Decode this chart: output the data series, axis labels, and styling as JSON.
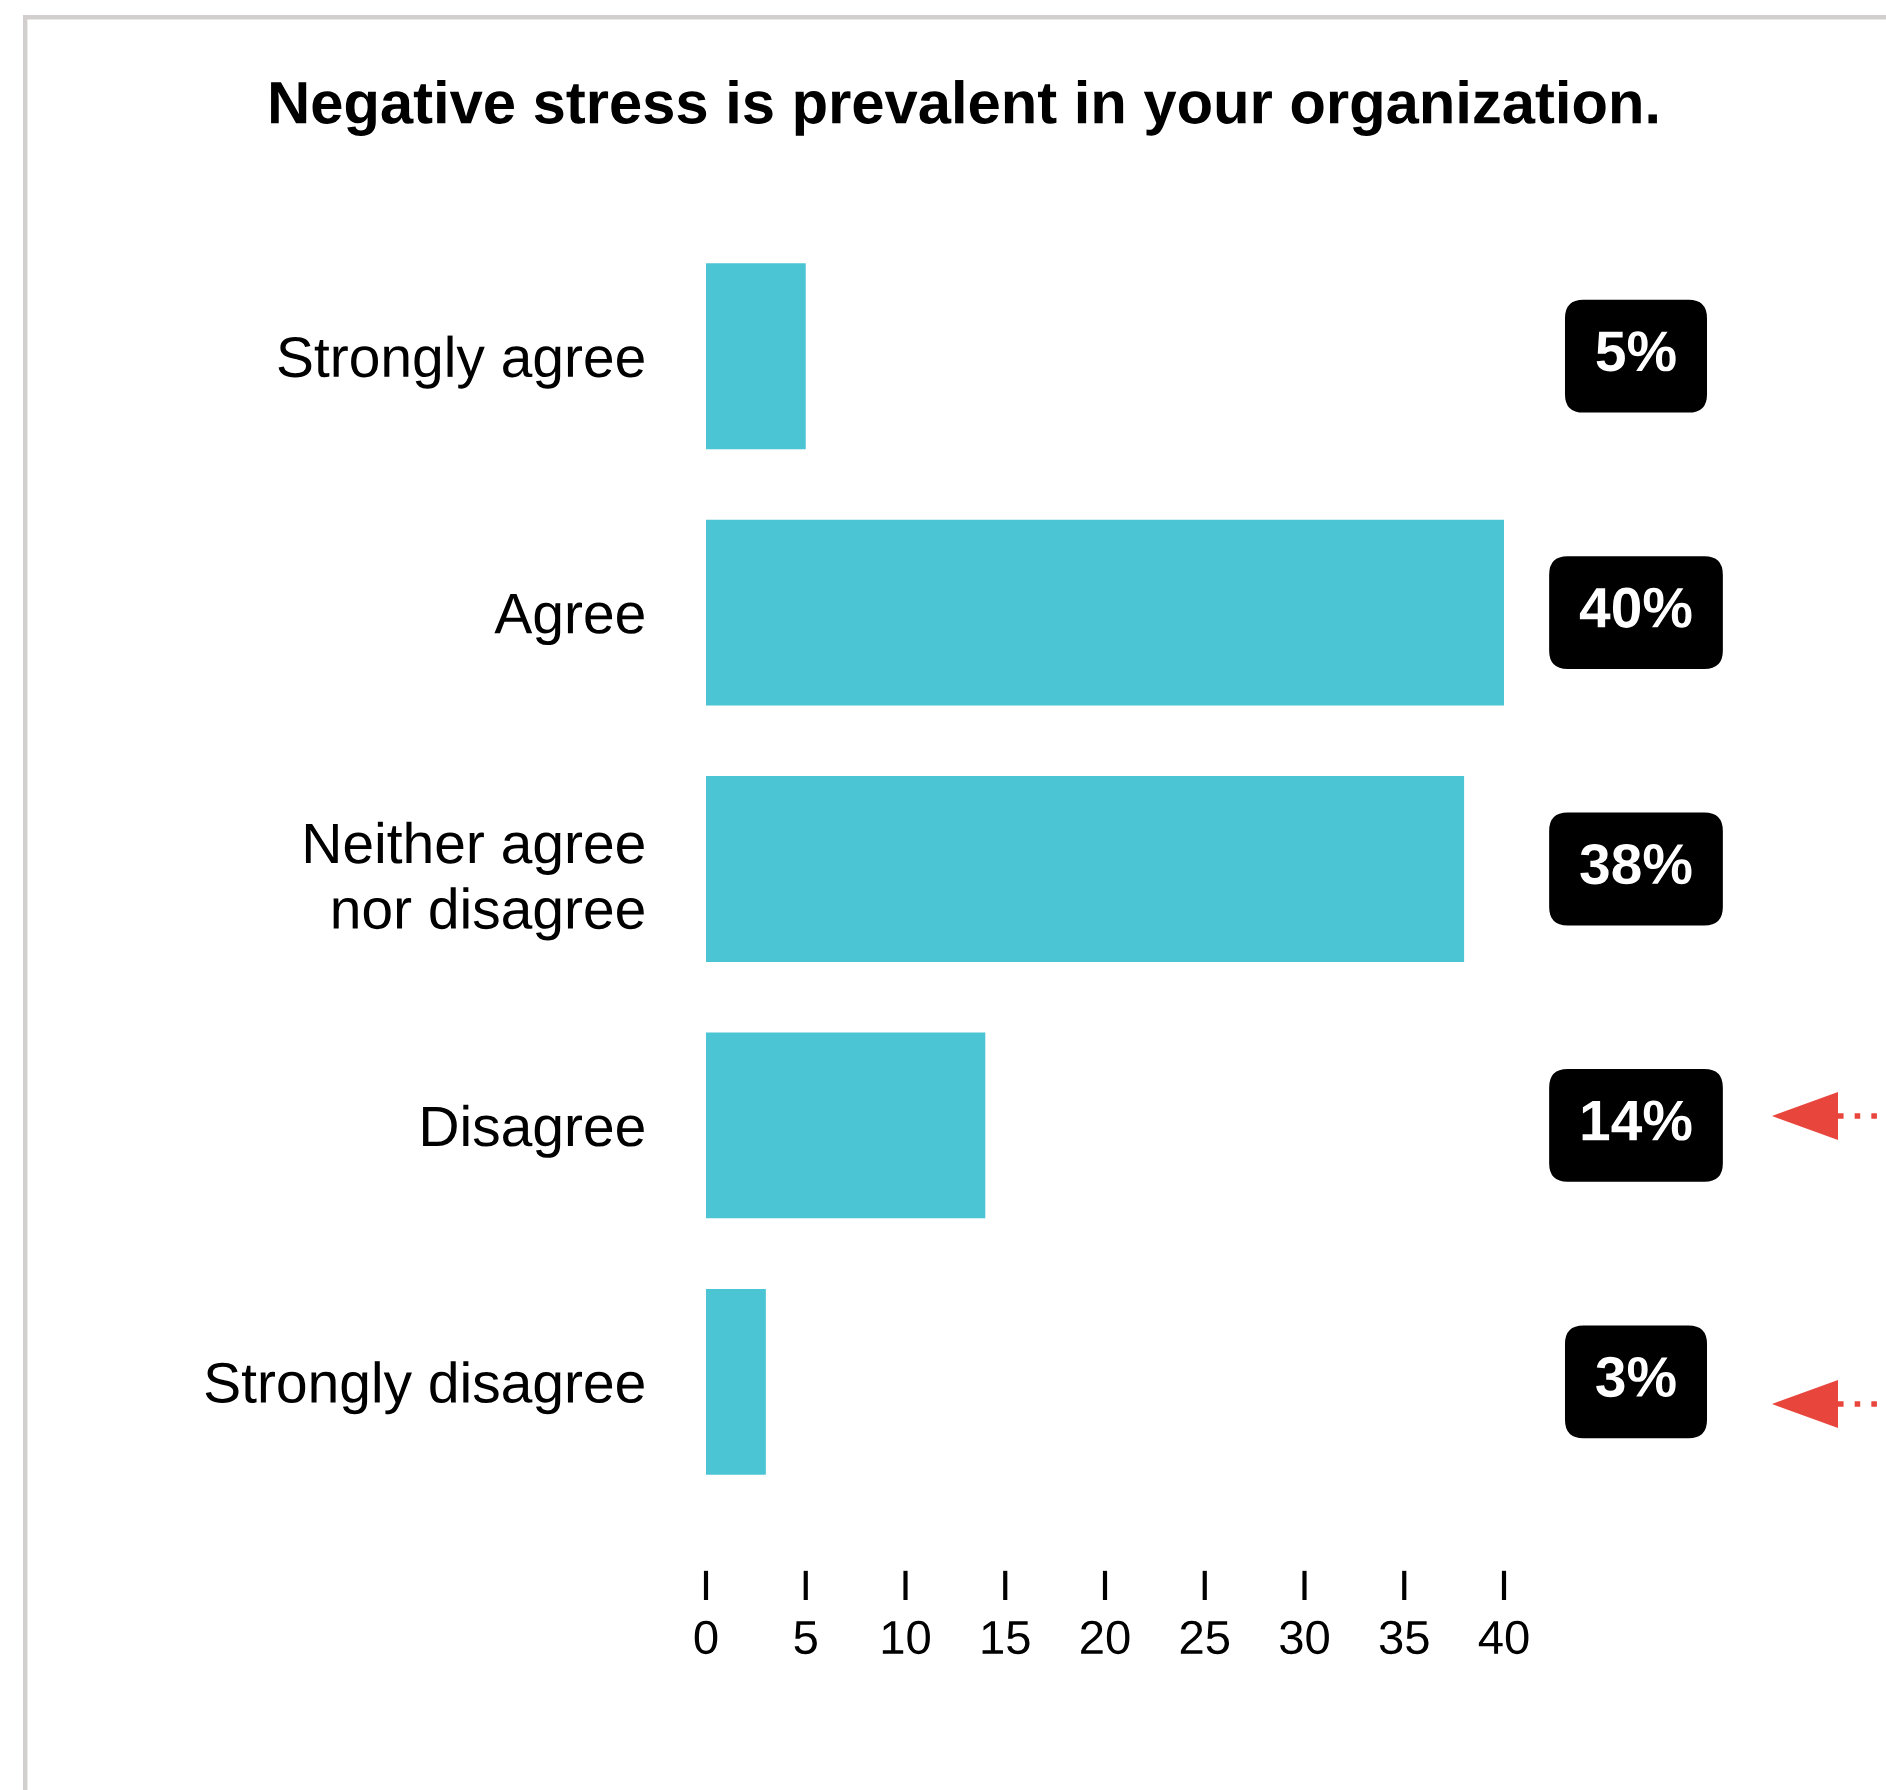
{
  "chart_data": {
    "type": "bar",
    "orientation": "horizontal",
    "title": "Negative stress is prevalent in your organization.",
    "categories": [
      "Strongly agree",
      "Agree",
      "Neither agree\nnor disagree",
      "Disagree",
      "Strongly disagree"
    ],
    "values": [
      5,
      40,
      38,
      14,
      3
    ],
    "color": "#4bc4d4",
    "value_labels": [
      "5%",
      "40%",
      "38%",
      "14%",
      "3%"
    ],
    "xlim": [
      0,
      40
    ],
    "xticks": [
      0,
      5,
      10,
      15,
      20,
      25,
      30,
      35,
      40
    ]
  }
}
